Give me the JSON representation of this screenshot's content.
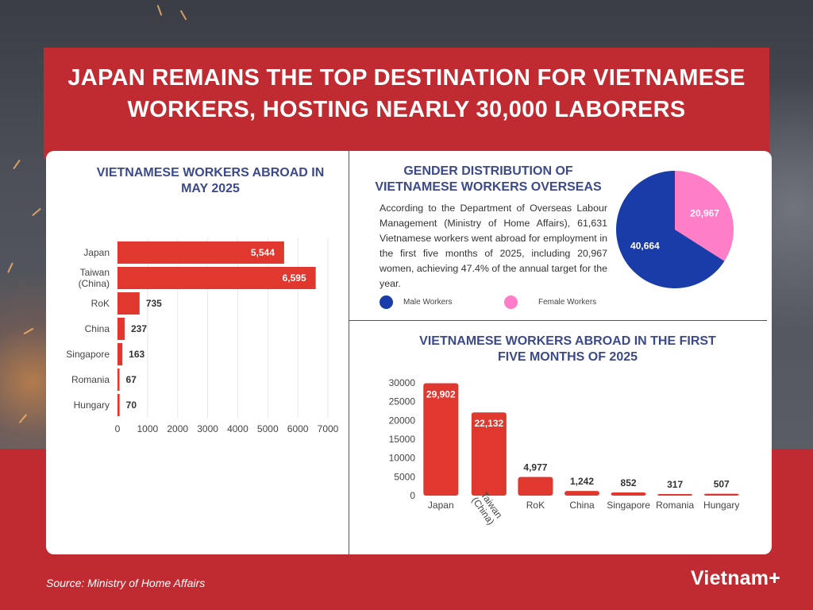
{
  "header": {
    "title_line1": "JAPAN REMAINS THE TOP DESTINATION FOR VIETNAMESE",
    "title_line2": "WORKERS, HOSTING NEARLY 30,000 LABORERS"
  },
  "gender": {
    "title_line1": "GENDER DISTRIBUTION OF",
    "title_line2": "VIETNAMESE WORKERS OVERSEAS",
    "paragraph": "According to the Department of Overseas Labour Management (Ministry of Home Affairs), 61,631 Vietnamese workers went abroad for employment in the first five months of 2025, including 20,967 women, achieving 47.4% of the annual target for the year.",
    "legend_male": "Male Workers",
    "legend_female": "Female Workers"
  },
  "colors": {
    "bar": "#e0372f",
    "male": "#1a3ca8",
    "female": "#ff7ec8",
    "title_blue": "#3c4a8a"
  },
  "footer": {
    "source": "Source: Ministry of Home Affairs",
    "logo": "Vietnam+"
  },
  "chart_data": [
    {
      "type": "bar",
      "orientation": "horizontal",
      "title": "VIETNAMESE WORKERS ABROAD IN MAY 2025",
      "categories": [
        "Japan",
        "Taiwan (China)",
        "RoK",
        "China",
        "Singapore",
        "Romania",
        "Hungary"
      ],
      "values": [
        5544,
        6595,
        735,
        237,
        163,
        67,
        70
      ],
      "value_labels": [
        "5,544",
        "6,595",
        "735",
        "237",
        "163",
        "67",
        "70"
      ],
      "xlim": [
        0,
        7000
      ],
      "xticks": [
        0,
        1000,
        2000,
        3000,
        4000,
        5000,
        6000,
        7000
      ],
      "grid": "vertical"
    },
    {
      "type": "pie",
      "title": "GENDER DISTRIBUTION OF VIETNAMESE WORKERS OVERSEAS",
      "slices": [
        {
          "name": "Female Workers",
          "value": 20967,
          "label": "20,967"
        },
        {
          "name": "Male Workers",
          "value": 40664,
          "label": "40,664"
        }
      ]
    },
    {
      "type": "bar",
      "orientation": "vertical",
      "title": "VIETNAMESE WORKERS ABROAD IN THE FIRST FIVE MONTHS OF 2025",
      "categories": [
        "Japan",
        "Taiwan (China)",
        "RoK",
        "China",
        "Singapore",
        "Romania",
        "Hungary"
      ],
      "values": [
        29902,
        22132,
        4977,
        1242,
        852,
        317,
        507
      ],
      "value_labels": [
        "29,902",
        "22,132",
        "4,977",
        "1,242",
        "852",
        "317",
        "507"
      ],
      "ylim": [
        0,
        30000
      ],
      "yticks": [
        0,
        5000,
        10000,
        15000,
        20000,
        25000,
        30000
      ]
    }
  ]
}
